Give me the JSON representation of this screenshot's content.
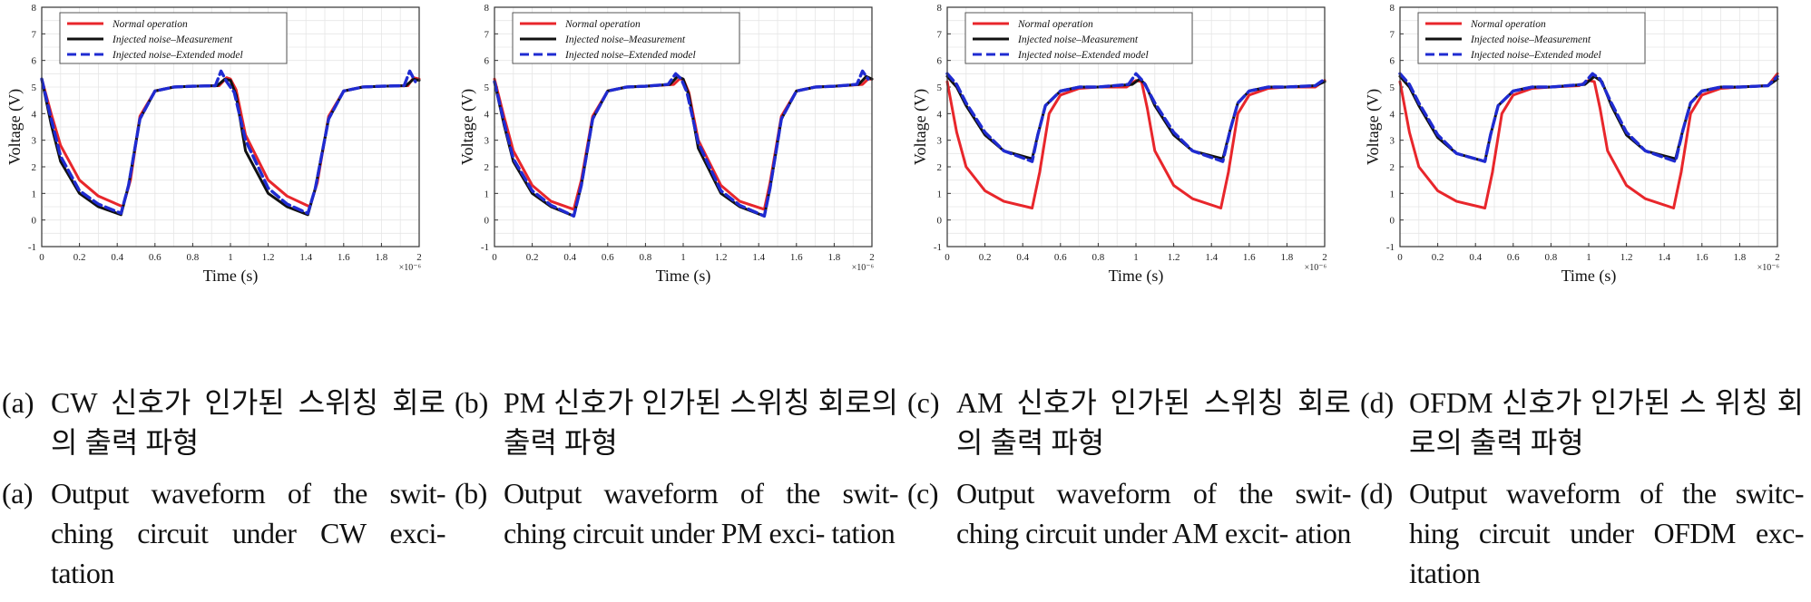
{
  "colors": {
    "normal": "#e8262b",
    "measurement": "#111111",
    "model": "#1f2bd1",
    "grid": "#e6e6e6",
    "axis": "#333333"
  },
  "panels": [
    {
      "id": "a",
      "caption_kr_label": "(a)",
      "caption_kr": "CW 신호가 인가된 스위칭 회로의 출력 파형",
      "caption_en_label": "(a)",
      "caption_en": "Output waveform of the swit- ching circuit under CW exci- tation"
    },
    {
      "id": "b",
      "caption_kr_label": "(b)",
      "caption_kr": "PM 신호가 인가된 스위칭 회로의 출력 파형",
      "caption_en_label": "(b)",
      "caption_en": "Output waveform of the swit- ching circuit under PM exci- tation"
    },
    {
      "id": "c",
      "caption_kr_label": "(c)",
      "caption_kr": "AM 신호가 인가된 스위칭 회로의 출력 파형",
      "caption_en_label": "(c)",
      "caption_en": "Output waveform of the swit- ching circuit under AM excit- ation"
    },
    {
      "id": "d",
      "caption_kr_label": "(d)",
      "caption_kr": "OFDM 신호가 인가된 스 위칭 회로의 출력 파형",
      "caption_en_label": "(d)",
      "caption_en": "Output waveform of the switc- hing circuit under OFDM exc- itation"
    }
  ],
  "chart_data": [
    {
      "type": "line",
      "xlabel": "Time (s)",
      "ylabel": "Voltage (V)",
      "x_multiplier": "×10⁻⁶",
      "xlim": [
        0,
        2
      ],
      "ylim": [
        -1,
        8
      ],
      "xticks": [
        "0",
        "0.2",
        "0.4",
        "0.6",
        "0.8",
        "1",
        "1.2",
        "1.4",
        "1.6",
        "1.8",
        "2"
      ],
      "yticks": [
        "-1",
        "0",
        "1",
        "2",
        "3",
        "4",
        "5",
        "6",
        "7",
        "8"
      ],
      "grid": true,
      "legend_position": "top-left",
      "series": [
        {
          "name": "Normal operation",
          "color": "#e8262b",
          "style": "solid",
          "x": [
            0,
            0.05,
            0.1,
            0.2,
            0.3,
            0.43,
            0.47,
            0.52,
            0.6,
            0.7,
            0.8,
            0.94,
            0.98,
            1.0,
            1.03,
            1.08,
            1.2,
            1.3,
            1.42,
            1.46,
            1.52,
            1.6,
            1.7,
            1.8,
            1.94,
            1.97,
            2.0
          ],
          "y": [
            5.3,
            4.0,
            2.8,
            1.5,
            0.9,
            0.5,
            1.5,
            3.9,
            4.85,
            5.0,
            5.03,
            5.05,
            5.35,
            5.3,
            4.9,
            3.2,
            1.5,
            0.9,
            0.5,
            1.4,
            3.9,
            4.85,
            5.0,
            5.03,
            5.05,
            5.35,
            5.3
          ]
        },
        {
          "name": "Injected noise–Measurement",
          "color": "#111111",
          "style": "solid",
          "x": [
            0,
            0.05,
            0.1,
            0.2,
            0.3,
            0.42,
            0.46,
            0.52,
            0.6,
            0.7,
            0.8,
            0.93,
            0.97,
            1.0,
            1.03,
            1.08,
            1.2,
            1.3,
            1.41,
            1.45,
            1.52,
            1.6,
            1.7,
            1.8,
            1.93,
            1.97,
            2.0
          ],
          "y": [
            5.3,
            3.6,
            2.2,
            1.0,
            0.5,
            0.2,
            1.3,
            3.8,
            4.85,
            5.0,
            5.03,
            5.05,
            5.3,
            5.25,
            4.7,
            2.6,
            1.0,
            0.5,
            0.2,
            1.2,
            3.8,
            4.85,
            5.0,
            5.03,
            5.05,
            5.3,
            5.25
          ]
        },
        {
          "name": "Injected noise–Extended model",
          "color": "#1f2bd1",
          "style": "dashed",
          "x": [
            0,
            0.05,
            0.1,
            0.2,
            0.3,
            0.42,
            0.46,
            0.52,
            0.6,
            0.7,
            0.8,
            0.92,
            0.95,
            0.98,
            1.02,
            1.08,
            1.2,
            1.3,
            1.41,
            1.45,
            1.52,
            1.6,
            1.7,
            1.8,
            1.92,
            1.95,
            1.98
          ],
          "y": [
            5.3,
            3.8,
            2.4,
            1.1,
            0.6,
            0.25,
            1.3,
            3.8,
            4.85,
            5.0,
            5.03,
            5.05,
            5.6,
            5.2,
            4.8,
            3.0,
            1.2,
            0.6,
            0.25,
            1.2,
            3.8,
            4.85,
            5.0,
            5.03,
            5.05,
            5.6,
            5.2
          ]
        }
      ]
    },
    {
      "type": "line",
      "xlabel": "Time (s)",
      "ylabel": "Voltage (V)",
      "x_multiplier": "×10⁻⁶",
      "xlim": [
        0,
        2
      ],
      "ylim": [
        -1,
        8
      ],
      "xticks": [
        "0",
        "0.2",
        "0.4",
        "0.6",
        "0.8",
        "1",
        "1.2",
        "1.4",
        "1.6",
        "1.8",
        "2"
      ],
      "yticks": [
        "-1",
        "0",
        "1",
        "2",
        "3",
        "4",
        "5",
        "6",
        "7",
        "8"
      ],
      "grid": true,
      "legend_position": "top-left",
      "series": [
        {
          "name": "Normal operation",
          "color": "#e8262b",
          "style": "solid",
          "x": [
            0,
            0.05,
            0.1,
            0.2,
            0.3,
            0.42,
            0.46,
            0.52,
            0.6,
            0.7,
            0.8,
            0.95,
            0.98,
            1.0,
            1.03,
            1.08,
            1.2,
            1.3,
            1.43,
            1.46,
            1.52,
            1.6,
            1.7,
            1.8,
            1.95,
            1.98,
            2.0
          ],
          "y": [
            5.3,
            3.9,
            2.6,
            1.3,
            0.7,
            0.4,
            1.5,
            3.9,
            4.85,
            5.0,
            5.03,
            5.1,
            5.3,
            5.3,
            4.8,
            3.0,
            1.3,
            0.7,
            0.4,
            1.4,
            3.9,
            4.85,
            5.0,
            5.03,
            5.1,
            5.3,
            5.3
          ]
        },
        {
          "name": "Injected noise–Measurement",
          "color": "#111111",
          "style": "solid",
          "x": [
            0,
            0.05,
            0.1,
            0.2,
            0.3,
            0.42,
            0.46,
            0.52,
            0.6,
            0.7,
            0.8,
            0.93,
            0.97,
            1.0,
            1.03,
            1.08,
            1.2,
            1.3,
            1.43,
            1.46,
            1.52,
            1.6,
            1.7,
            1.8,
            1.93,
            1.97,
            2.0
          ],
          "y": [
            5.2,
            3.6,
            2.2,
            1.0,
            0.5,
            0.15,
            1.3,
            3.8,
            4.85,
            5.0,
            5.03,
            5.1,
            5.4,
            5.3,
            4.7,
            2.7,
            1.0,
            0.5,
            0.15,
            1.2,
            3.8,
            4.85,
            5.0,
            5.03,
            5.1,
            5.4,
            5.3
          ]
        },
        {
          "name": "Injected noise–Extended model",
          "color": "#1f2bd1",
          "style": "dashed",
          "x": [
            0,
            0.05,
            0.1,
            0.2,
            0.3,
            0.42,
            0.46,
            0.52,
            0.6,
            0.7,
            0.8,
            0.92,
            0.96,
            0.99,
            1.02,
            1.08,
            1.2,
            1.3,
            1.43,
            1.46,
            1.52,
            1.6,
            1.7,
            1.8,
            1.92,
            1.95,
            1.98
          ],
          "y": [
            5.2,
            3.7,
            2.3,
            1.1,
            0.55,
            0.15,
            1.3,
            3.8,
            4.85,
            5.0,
            5.03,
            5.1,
            5.5,
            5.3,
            4.8,
            2.9,
            1.1,
            0.55,
            0.15,
            1.2,
            3.8,
            4.85,
            5.0,
            5.03,
            5.1,
            5.6,
            5.3
          ]
        }
      ]
    },
    {
      "type": "line",
      "xlabel": "Time (s)",
      "ylabel": "Voltage (V)",
      "x_multiplier": "×10⁻⁶",
      "xlim": [
        0,
        2
      ],
      "ylim": [
        -1,
        8
      ],
      "xticks": [
        "0",
        "0.2",
        "0.4",
        "0.6",
        "0.8",
        "1",
        "1.2",
        "1.4",
        "1.6",
        "1.8",
        "2"
      ],
      "yticks": [
        "-1",
        "0",
        "1",
        "2",
        "3",
        "4",
        "5",
        "6",
        "7",
        "8"
      ],
      "grid": true,
      "legend_position": "top-left",
      "series": [
        {
          "name": "Normal operation",
          "color": "#e8262b",
          "style": "solid",
          "x": [
            0,
            0.05,
            0.1,
            0.2,
            0.3,
            0.45,
            0.49,
            0.54,
            0.6,
            0.7,
            0.8,
            0.95,
            1.0,
            1.03,
            1.06,
            1.1,
            1.2,
            1.3,
            1.45,
            1.49,
            1.54,
            1.6,
            1.7,
            1.8,
            1.95,
            2.0
          ],
          "y": [
            5.2,
            3.3,
            2.0,
            1.1,
            0.7,
            0.45,
            1.8,
            4.0,
            4.7,
            4.95,
            5.0,
            5.0,
            5.25,
            5.2,
            4.2,
            2.6,
            1.3,
            0.8,
            0.45,
            1.8,
            4.0,
            4.7,
            4.95,
            5.0,
            5.0,
            5.25
          ]
        },
        {
          "name": "Injected noise–Measurement",
          "color": "#111111",
          "style": "solid",
          "x": [
            0,
            0.05,
            0.1,
            0.2,
            0.3,
            0.45,
            0.48,
            0.52,
            0.6,
            0.7,
            0.8,
            0.98,
            1.02,
            1.05,
            1.1,
            1.2,
            1.3,
            1.46,
            1.5,
            1.54,
            1.6,
            1.7,
            1.8,
            1.95,
            2.0
          ],
          "y": [
            5.4,
            5.0,
            4.3,
            3.2,
            2.6,
            2.3,
            3.2,
            4.3,
            4.85,
            5.0,
            5.0,
            5.1,
            5.3,
            5.1,
            4.3,
            3.2,
            2.6,
            2.3,
            3.4,
            4.4,
            4.85,
            5.0,
            5.0,
            5.05,
            5.2
          ]
        },
        {
          "name": "Injected noise–Extended model",
          "color": "#1f2bd1",
          "style": "dashed",
          "x": [
            0,
            0.05,
            0.1,
            0.2,
            0.3,
            0.45,
            0.48,
            0.52,
            0.6,
            0.7,
            0.8,
            0.96,
            1.0,
            1.04,
            1.1,
            1.2,
            1.3,
            1.46,
            1.5,
            1.54,
            1.6,
            1.7,
            1.8,
            1.95,
            2.0
          ],
          "y": [
            5.5,
            5.1,
            4.4,
            3.3,
            2.6,
            2.2,
            3.2,
            4.3,
            4.85,
            5.0,
            5.0,
            5.1,
            5.5,
            5.2,
            4.4,
            3.3,
            2.6,
            2.2,
            3.4,
            4.4,
            4.85,
            5.0,
            5.0,
            5.05,
            5.3
          ]
        }
      ]
    },
    {
      "type": "line",
      "xlabel": "Time (s)",
      "ylabel": "Voltage (V)",
      "x_multiplier": "×10⁻⁶",
      "xlim": [
        0,
        2
      ],
      "ylim": [
        -1,
        8
      ],
      "xticks": [
        "0",
        "0.2",
        "0.4",
        "0.6",
        "0.8",
        "1",
        "1.2",
        "1.4",
        "1.6",
        "1.8",
        "2"
      ],
      "yticks": [
        "-1",
        "0",
        "1",
        "2",
        "3",
        "4",
        "5",
        "6",
        "7",
        "8"
      ],
      "grid": true,
      "legend_position": "top-left",
      "series": [
        {
          "name": "Normal operation",
          "color": "#e8262b",
          "style": "solid",
          "x": [
            0,
            0.05,
            0.1,
            0.2,
            0.3,
            0.45,
            0.49,
            0.54,
            0.6,
            0.7,
            0.8,
            0.95,
            1.0,
            1.03,
            1.06,
            1.1,
            1.2,
            1.3,
            1.45,
            1.49,
            1.54,
            1.6,
            1.7,
            1.8,
            1.95,
            2.0
          ],
          "y": [
            5.2,
            3.3,
            2.0,
            1.1,
            0.7,
            0.45,
            1.8,
            4.0,
            4.7,
            4.95,
            5.0,
            5.05,
            5.25,
            5.2,
            4.2,
            2.6,
            1.3,
            0.8,
            0.45,
            1.8,
            4.0,
            4.7,
            4.95,
            5.0,
            5.05,
            5.5
          ]
        },
        {
          "name": "Injected noise–Measurement",
          "color": "#111111",
          "style": "solid",
          "x": [
            0,
            0.05,
            0.1,
            0.2,
            0.3,
            0.45,
            0.48,
            0.52,
            0.6,
            0.7,
            0.8,
            0.98,
            1.03,
            1.07,
            1.12,
            1.2,
            1.3,
            1.46,
            1.5,
            1.54,
            1.6,
            1.7,
            1.8,
            1.95,
            2.0
          ],
          "y": [
            5.4,
            5.0,
            4.3,
            3.1,
            2.5,
            2.2,
            3.2,
            4.3,
            4.85,
            5.0,
            5.0,
            5.1,
            5.4,
            5.2,
            4.3,
            3.2,
            2.6,
            2.3,
            3.4,
            4.4,
            4.85,
            5.0,
            5.0,
            5.05,
            5.3
          ]
        },
        {
          "name": "Injected noise–Extended model",
          "color": "#1f2bd1",
          "style": "dashed",
          "x": [
            0,
            0.05,
            0.1,
            0.2,
            0.3,
            0.45,
            0.48,
            0.52,
            0.6,
            0.7,
            0.8,
            0.97,
            1.02,
            1.06,
            1.12,
            1.2,
            1.3,
            1.46,
            1.5,
            1.54,
            1.6,
            1.7,
            1.8,
            1.95,
            2.0
          ],
          "y": [
            5.5,
            5.1,
            4.4,
            3.2,
            2.5,
            2.2,
            3.2,
            4.3,
            4.85,
            5.0,
            5.0,
            5.1,
            5.5,
            5.3,
            4.4,
            3.3,
            2.6,
            2.2,
            3.4,
            4.4,
            4.85,
            5.0,
            5.0,
            5.05,
            5.4
          ]
        }
      ]
    }
  ]
}
